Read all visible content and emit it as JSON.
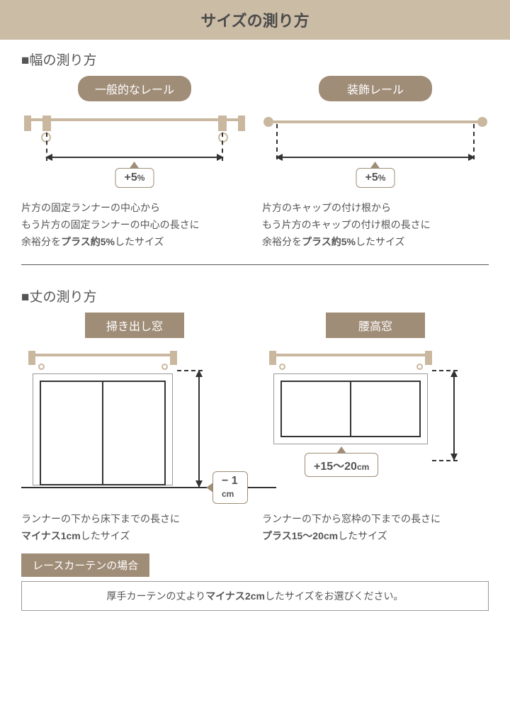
{
  "title": "サイズの測り方",
  "width_section": {
    "title": "■幅の測り方",
    "left": {
      "label": "一般的なレール",
      "callout": "+5",
      "callout_unit": "%",
      "desc_lines": [
        "片方の固定ランナーの中心から",
        "もう片方の固定ランナーの中心の長さに",
        "余裕分を<b>プラス約5%</b>したサイズ"
      ]
    },
    "right": {
      "label": "装飾レール",
      "callout": "+5",
      "callout_unit": "%",
      "desc_lines": [
        "片方のキャップの付け根から",
        "もう片方のキャップの付け根の長さに",
        "余裕分を<b>プラス約5%</b>したサイズ"
      ]
    }
  },
  "height_section": {
    "title": "■丈の測り方",
    "left": {
      "label": "掃き出し窓",
      "callout": "− 1",
      "callout_unit": "cm",
      "desc_lines": [
        "ランナーの下から床下までの長さに",
        "<b>マイナス1cm</b>したサイズ"
      ]
    },
    "right": {
      "label": "腰高窓",
      "callout": "+15〜20",
      "callout_unit": "cm",
      "desc_lines": [
        "ランナーの下から窓枠の下までの長さに",
        "<b>プラス15〜20cm</b>したサイズ"
      ]
    }
  },
  "lace": {
    "tag": "レースカーテンの場合",
    "note": "厚手カーテンの丈より<b>マイナス2cm</b>したサイズをお選びください。"
  },
  "colors": {
    "accent": "#a08d78",
    "title_bg": "#cbbca6",
    "rail": "#c9b89f",
    "text": "#555"
  }
}
